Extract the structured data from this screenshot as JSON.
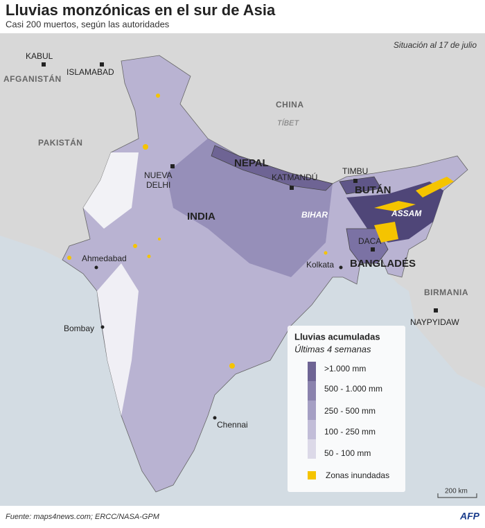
{
  "header": {
    "title": "Lluvias monzónicas en el sur de Asia",
    "subtitle": "Casi 200 muertos, según las autoridades"
  },
  "date_note": "Situación al 17 de julio",
  "map": {
    "countries": [
      "AFGANISTÁN",
      "PAKISTÁN",
      "CHINA",
      "NEPAL",
      "BUTÁN",
      "INDIA",
      "BANGLADÉS",
      "BIRMANIA"
    ],
    "regions": [
      "TÍBET",
      "BIHAR",
      "ASSAM"
    ],
    "capitals": [
      "KABUL",
      "ISLAMABAD",
      "KATMANDÚ",
      "TIMBU",
      "DACA",
      "NAYPYIDAW"
    ],
    "new_delhi": [
      "NUEVA",
      "DELHI"
    ],
    "cities": [
      "Ahmedabad",
      "Bombay",
      "Kolkata",
      "Chennai"
    ]
  },
  "legend": {
    "title": "Lluvias acumuladas",
    "subtitle": "Últimas 4 semanas",
    "items": [
      ">1.000 mm",
      "500 - 1.000 mm",
      "250 - 500 mm",
      "100 - 250 mm",
      "50 - 100 mm"
    ],
    "flood": "Zonas inundadas"
  },
  "scale": "200 km",
  "footer": {
    "source": "Fuente: maps4news.com; ERCC/NASA-GPM",
    "logo": "AFP"
  }
}
